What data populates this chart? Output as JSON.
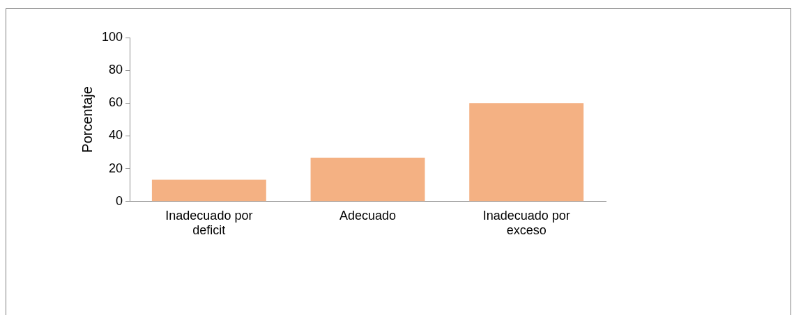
{
  "chart_data": {
    "type": "bar",
    "ylabel": "Porcentaje",
    "categories": [
      "Inadecuado por deficit",
      "Adecuado",
      "Inadecuado por exceso"
    ],
    "values": [
      13.3,
      26.7,
      60
    ],
    "color": "#f4b183",
    "ylim": [
      0,
      100
    ],
    "yticks": [
      0,
      20,
      40,
      60,
      80,
      100
    ],
    "grid": false,
    "legend": false
  }
}
